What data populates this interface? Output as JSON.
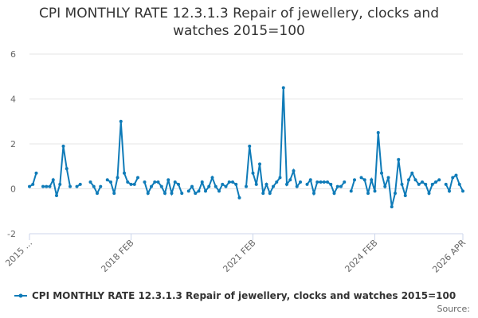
{
  "chart_data": {
    "type": "line",
    "title": "CPI MONTHLY RATE 12.3.1.3 Repair of jewellery, clocks and watches 2015=100",
    "source": "Source:",
    "categories": [
      "2015 ...",
      null,
      null,
      null,
      null,
      null,
      null,
      null,
      null,
      null,
      null,
      null,
      null,
      null,
      null,
      null,
      null,
      null,
      null,
      null,
      null,
      null,
      null,
      null,
      null,
      null,
      null,
      null,
      null,
      null,
      "2018 FEB",
      null,
      null,
      null,
      null,
      null,
      null,
      null,
      null,
      null,
      null,
      null,
      null,
      null,
      null,
      null,
      null,
      null,
      null,
      null,
      null,
      null,
      null,
      null,
      null,
      null,
      null,
      null,
      null,
      null,
      null,
      null,
      null,
      null,
      null,
      null,
      "2021 FEB",
      null,
      null,
      null,
      null,
      null,
      null,
      null,
      null,
      null,
      null,
      null,
      null,
      null,
      null,
      null,
      null,
      null,
      null,
      null,
      null,
      null,
      null,
      null,
      null,
      null,
      null,
      null,
      null,
      null,
      null,
      null,
      null,
      null,
      null,
      null,
      "2024 FEB",
      null,
      null,
      null,
      null,
      null,
      null,
      null,
      null,
      null,
      null,
      null,
      null,
      null,
      null,
      null,
      null,
      null,
      null,
      null,
      null,
      null,
      null,
      null,
      null,
      null,
      "2026 APR"
    ],
    "series": [
      {
        "name": "CPI MONTHLY RATE 12.3.1.3 Repair of jewellery, clocks and watches 2015=100",
        "color": "#0f7bb8",
        "values": [
          0.1,
          0.2,
          0.7,
          null,
          0.1,
          0.1,
          0.1,
          0.4,
          -0.3,
          0.2,
          1.9,
          0.9,
          0.1,
          null,
          0.1,
          0.2,
          null,
          null,
          0.3,
          0.1,
          -0.2,
          0.1,
          null,
          0.4,
          0.3,
          -0.2,
          0.5,
          3.0,
          0.7,
          0.3,
          0.2,
          0.2,
          0.5,
          null,
          0.3,
          -0.2,
          0.1,
          0.3,
          0.3,
          0.1,
          -0.2,
          0.4,
          -0.2,
          0.3,
          0.2,
          -0.2,
          null,
          -0.1,
          0.1,
          -0.2,
          -0.1,
          0.3,
          -0.1,
          0.1,
          0.5,
          0.1,
          -0.1,
          0.2,
          0.1,
          0.3,
          0.3,
          0.2,
          -0.4,
          null,
          0.1,
          1.9,
          0.7,
          0.2,
          1.1,
          -0.2,
          0.2,
          -0.2,
          0.1,
          0.3,
          0.5,
          4.5,
          0.2,
          0.4,
          0.8,
          0.1,
          0.3,
          null,
          0.2,
          0.4,
          -0.2,
          0.3,
          0.3,
          0.3,
          0.3,
          0.2,
          -0.2,
          0.1,
          0.1,
          0.3,
          null,
          -0.1,
          0.4,
          null,
          0.5,
          0.4,
          -0.2,
          0.4,
          -0.1,
          2.5,
          0.7,
          0.1,
          0.5,
          -0.8,
          -0.2,
          1.3,
          0.2,
          -0.3,
          0.4,
          0.7,
          0.4,
          0.2,
          0.3,
          0.2,
          -0.2,
          0.2,
          0.3,
          0.4,
          null,
          0.2,
          -0.1,
          0.5,
          0.6,
          0.2,
          -0.1
        ]
      }
    ],
    "ylim": [
      -2,
      6
    ],
    "yticks": [
      -2,
      0,
      2,
      4,
      6
    ],
    "grid": true
  }
}
